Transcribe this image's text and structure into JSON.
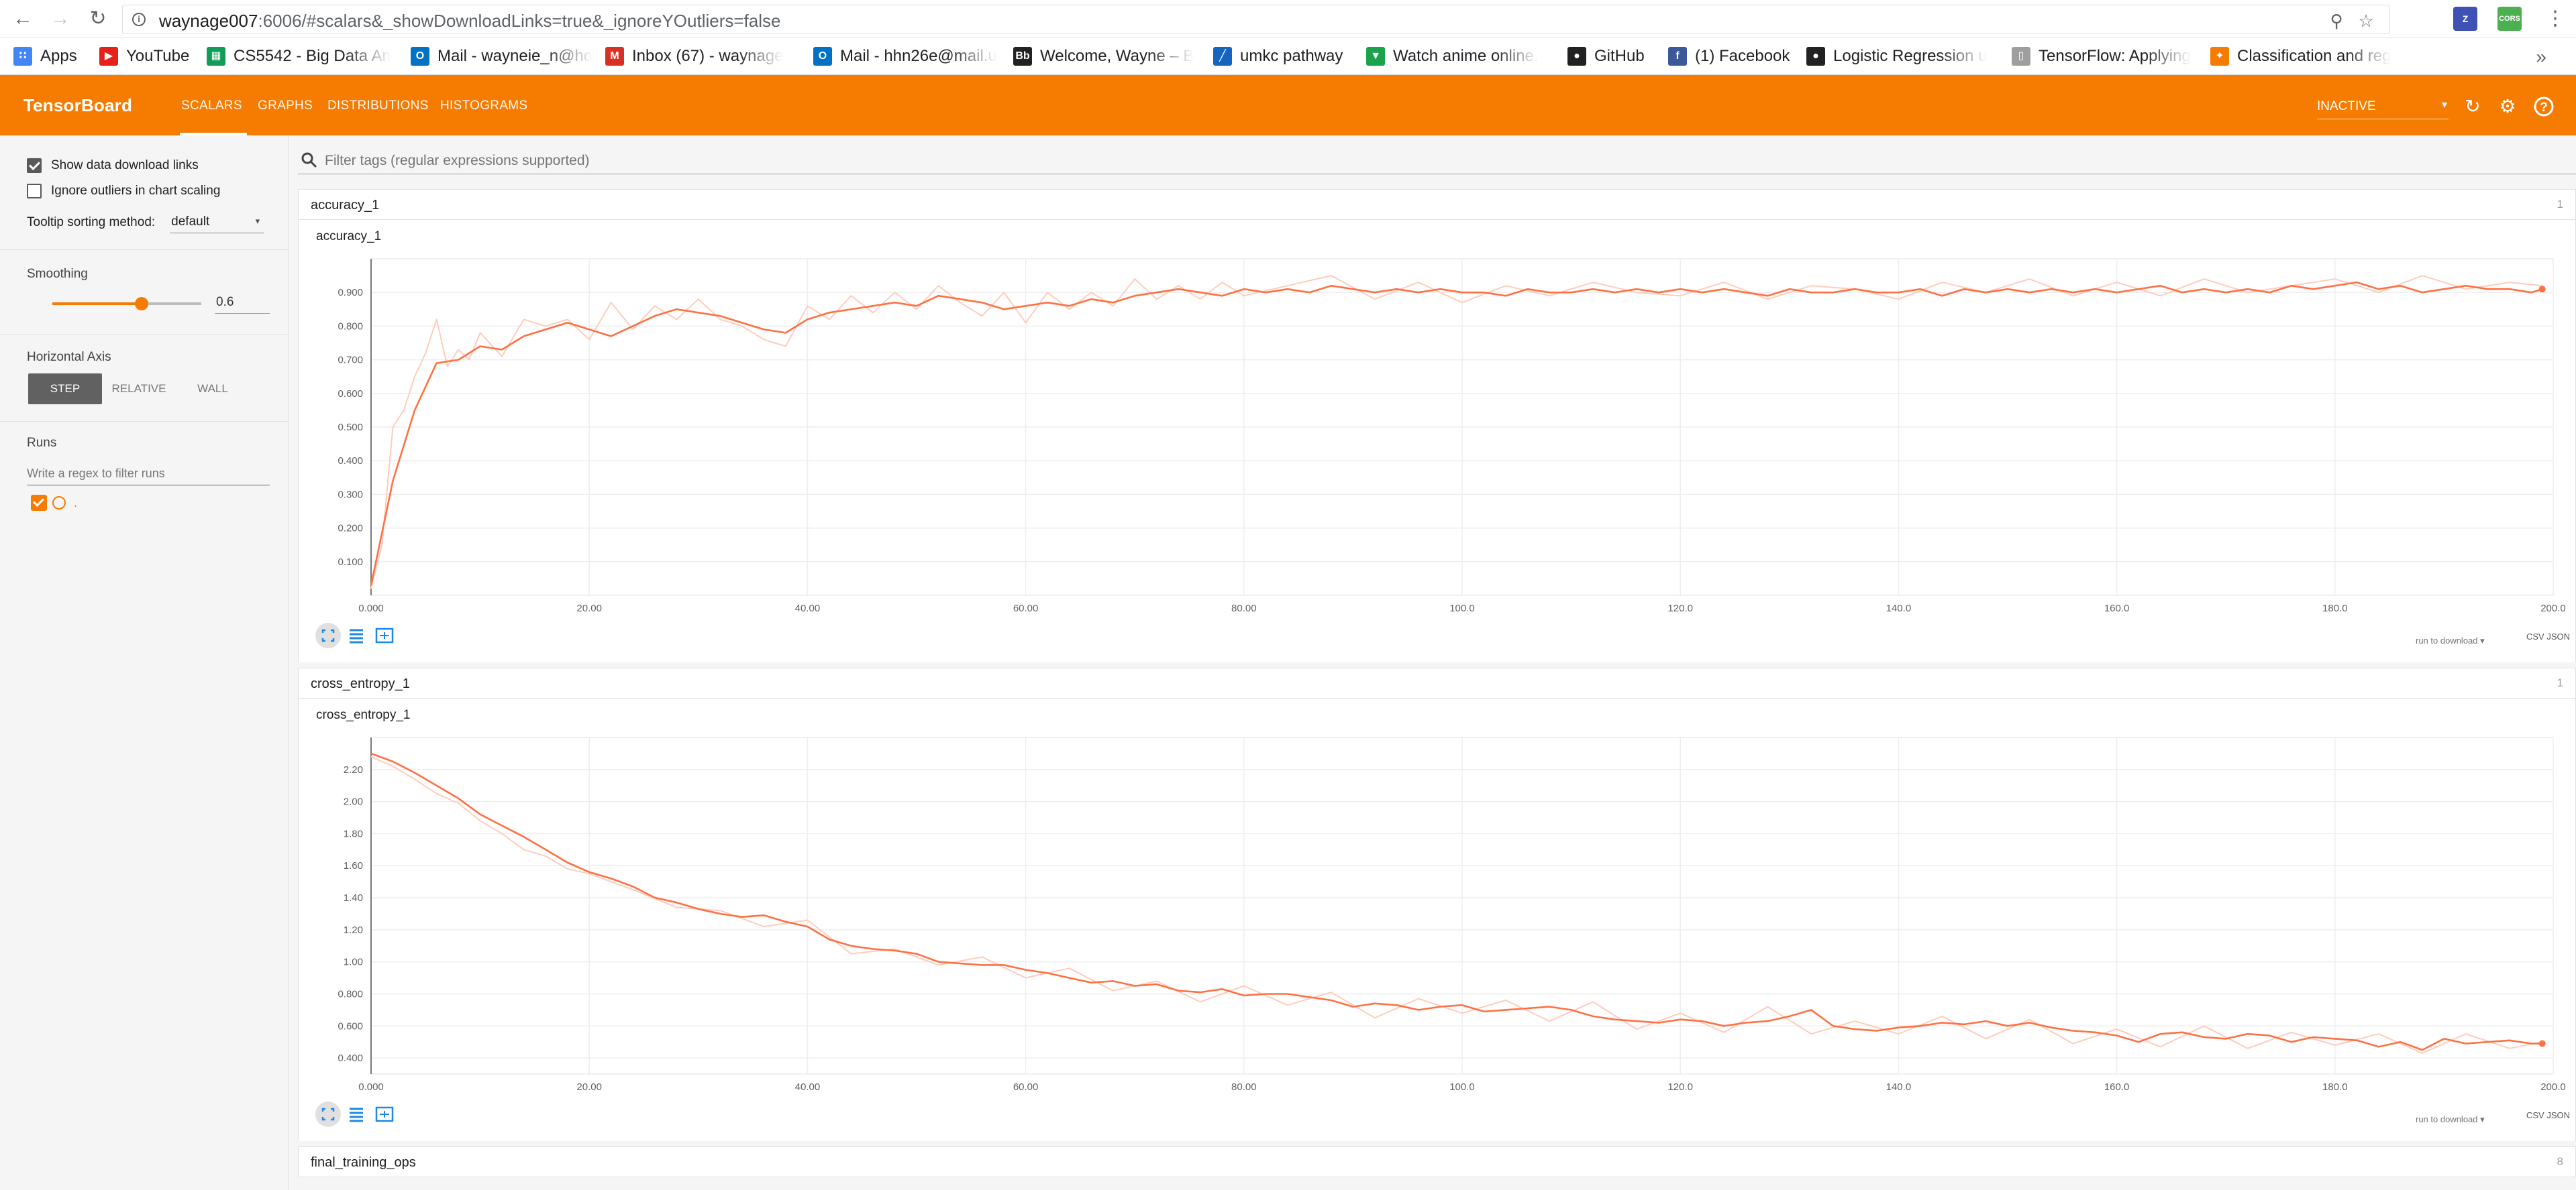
{
  "browser": {
    "url_host": "waynage007",
    "url_rest": ":6006/#scalars&_showDownloadLinks=true&_ignoreYOutliers=false",
    "bookmarks": [
      {
        "label": "Apps",
        "icon": "apps-grid-icon",
        "color": "#4285f4"
      },
      {
        "label": "YouTube",
        "icon": "youtube-icon",
        "color": "#e62117"
      },
      {
        "label": "CS5542 - Big Data An",
        "icon": "sheets-icon",
        "color": "#0f9d58"
      },
      {
        "label": "Mail - wayneie_n@ho",
        "icon": "outlook-icon",
        "color": "#0072c6"
      },
      {
        "label": "Inbox (67) - waynage",
        "icon": "gmail-icon",
        "color": "#d93025"
      },
      {
        "label": "Mail - hhn26e@mail.u",
        "icon": "outlook-icon",
        "color": "#0072c6"
      },
      {
        "label": "Welcome, Wayne – B",
        "icon": "blackboard-icon",
        "color": "#222222"
      },
      {
        "label": "umkc pathway",
        "icon": "umkc-icon",
        "color": "#1565c0"
      },
      {
        "label": "Watch anime online, ",
        "icon": "anime-icon",
        "color": "#1aa34a"
      },
      {
        "label": "GitHub",
        "icon": "github-icon",
        "color": "#222222"
      },
      {
        "label": "(1) Facebook",
        "icon": "facebook-icon",
        "color": "#3b5998"
      },
      {
        "label": "Logistic Regression u",
        "icon": "github-icon",
        "color": "#222222"
      },
      {
        "label": "TensorFlow: Applying",
        "icon": "document-icon",
        "color": "#9e9e9e"
      },
      {
        "label": "Classification and reg",
        "icon": "badge-icon",
        "color": "#f57c00"
      }
    ]
  },
  "toolbar": {
    "title": "TensorBoard",
    "tabs": [
      "SCALARS",
      "GRAPHS",
      "DISTRIBUTIONS",
      "HISTOGRAMS"
    ],
    "status": "INACTIVE",
    "accent": "#f57c00"
  },
  "sidebar": {
    "show_download_links": "Show data download links",
    "ignore_outliers": "Ignore outliers in chart scaling",
    "tooltip_label": "Tooltip sorting method:",
    "tooltip_value": "default",
    "smoothing_label": "Smoothing",
    "smoothing_value": "0.6",
    "smoothing_fraction": 0.6,
    "horizontal_axis_label": "Horizontal Axis",
    "axis_options": [
      "STEP",
      "RELATIVE",
      "WALL"
    ],
    "runs_label": "Runs",
    "runs_filter_placeholder": "Write a regex to filter runs",
    "run_name": "."
  },
  "main": {
    "filter_placeholder": "Filter tags (regular expressions supported)",
    "categories": [
      {
        "name": "accuracy_1",
        "count": "1"
      },
      {
        "name": "cross_entropy_1",
        "count": "1"
      },
      {
        "name": "final_training_ops",
        "count": "8"
      }
    ],
    "download_select": "run to download",
    "download_links": "CSV JSON"
  },
  "chart_data": [
    {
      "type": "line",
      "title": "accuracy_1",
      "xlabel": "",
      "ylabel": "",
      "xlim": [
        0,
        200
      ],
      "ylim": [
        0,
        1.0
      ],
      "x_ticks": [
        "0.000",
        "20.00",
        "40.00",
        "60.00",
        "80.00",
        "100.0",
        "120.0",
        "140.0",
        "160.0",
        "180.0",
        "200.0"
      ],
      "y_ticks": [
        "0.100",
        "0.200",
        "0.300",
        "0.400",
        "0.500",
        "0.600",
        "0.700",
        "0.800",
        "0.900"
      ],
      "grid": true,
      "series": [
        {
          "color": "#ff7043",
          "x": [
            0,
            2,
            4,
            6,
            8,
            10,
            12,
            14,
            16,
            18,
            20,
            22,
            24,
            26,
            28,
            30,
            32,
            34,
            36,
            38,
            40,
            42,
            44,
            46,
            48,
            50,
            52,
            54,
            56,
            58,
            60,
            62,
            64,
            66,
            68,
            70,
            72,
            74,
            76,
            78,
            80,
            82,
            84,
            86,
            88,
            90,
            92,
            94,
            96,
            98,
            100,
            102,
            104,
            106,
            108,
            110,
            112,
            114,
            116,
            118,
            120,
            122,
            124,
            126,
            128,
            130,
            132,
            134,
            136,
            138,
            140,
            142,
            144,
            146,
            148,
            150,
            152,
            154,
            156,
            158,
            160,
            162,
            164,
            166,
            168,
            170,
            172,
            174,
            176,
            178,
            180,
            182,
            184,
            186,
            188,
            190,
            192,
            194,
            196,
            198,
            199
          ],
          "y": [
            0.03,
            0.34,
            0.55,
            0.69,
            0.7,
            0.74,
            0.73,
            0.77,
            0.79,
            0.81,
            0.79,
            0.77,
            0.8,
            0.83,
            0.85,
            0.84,
            0.83,
            0.81,
            0.79,
            0.78,
            0.82,
            0.84,
            0.85,
            0.86,
            0.87,
            0.86,
            0.89,
            0.88,
            0.87,
            0.85,
            0.86,
            0.87,
            0.86,
            0.88,
            0.87,
            0.89,
            0.9,
            0.91,
            0.9,
            0.89,
            0.91,
            0.9,
            0.91,
            0.9,
            0.92,
            0.91,
            0.9,
            0.91,
            0.9,
            0.91,
            0.9,
            0.9,
            0.89,
            0.91,
            0.9,
            0.9,
            0.91,
            0.9,
            0.91,
            0.9,
            0.91,
            0.9,
            0.91,
            0.9,
            0.89,
            0.91,
            0.9,
            0.9,
            0.91,
            0.9,
            0.9,
            0.91,
            0.89,
            0.91,
            0.9,
            0.91,
            0.9,
            0.91,
            0.9,
            0.91,
            0.9,
            0.91,
            0.92,
            0.9,
            0.91,
            0.9,
            0.91,
            0.9,
            0.92,
            0.91,
            0.92,
            0.93,
            0.91,
            0.92,
            0.9,
            0.91,
            0.92,
            0.91,
            0.91,
            0.9,
            0.91
          ]
        },
        {
          "color": "#ffccbc",
          "x": [
            0,
            1,
            2,
            3,
            4,
            5,
            6,
            7,
            8,
            9,
            10,
            12,
            14,
            16,
            18,
            20,
            22,
            24,
            26,
            28,
            30,
            32,
            34,
            36,
            38,
            40,
            42,
            44,
            46,
            48,
            50,
            52,
            54,
            56,
            58,
            60,
            62,
            64,
            66,
            68,
            70,
            72,
            74,
            76,
            78,
            80,
            84,
            88,
            92,
            96,
            100,
            104,
            108,
            112,
            116,
            120,
            124,
            128,
            132,
            136,
            140,
            144,
            148,
            152,
            156,
            160,
            164,
            168,
            172,
            176,
            180,
            184,
            188,
            192,
            196,
            199
          ],
          "y": [
            0.02,
            0.15,
            0.5,
            0.55,
            0.65,
            0.72,
            0.82,
            0.68,
            0.73,
            0.7,
            0.78,
            0.71,
            0.82,
            0.8,
            0.82,
            0.76,
            0.87,
            0.79,
            0.86,
            0.82,
            0.88,
            0.82,
            0.8,
            0.76,
            0.74,
            0.86,
            0.82,
            0.89,
            0.84,
            0.9,
            0.85,
            0.92,
            0.87,
            0.83,
            0.9,
            0.81,
            0.9,
            0.85,
            0.9,
            0.86,
            0.94,
            0.88,
            0.92,
            0.88,
            0.93,
            0.89,
            0.92,
            0.95,
            0.88,
            0.93,
            0.87,
            0.92,
            0.89,
            0.93,
            0.9,
            0.89,
            0.93,
            0.88,
            0.92,
            0.91,
            0.88,
            0.93,
            0.9,
            0.94,
            0.89,
            0.93,
            0.89,
            0.94,
            0.9,
            0.92,
            0.94,
            0.9,
            0.95,
            0.91,
            0.93,
            0.92
          ]
        }
      ]
    },
    {
      "type": "line",
      "title": "cross_entropy_1",
      "xlabel": "",
      "ylabel": "",
      "xlim": [
        0,
        200
      ],
      "ylim": [
        0.3,
        2.4
      ],
      "x_ticks": [
        "0.000",
        "20.00",
        "40.00",
        "60.00",
        "80.00",
        "100.0",
        "120.0",
        "140.0",
        "160.0",
        "180.0",
        "200.0"
      ],
      "y_ticks": [
        "0.400",
        "0.600",
        "0.800",
        "1.00",
        "1.20",
        "1.40",
        "1.60",
        "1.80",
        "2.00",
        "2.20"
      ],
      "grid": true,
      "series": [
        {
          "color": "#ff7043",
          "x": [
            0,
            2,
            4,
            6,
            8,
            10,
            12,
            14,
            16,
            18,
            20,
            22,
            24,
            26,
            28,
            30,
            32,
            34,
            36,
            38,
            40,
            42,
            44,
            46,
            48,
            50,
            52,
            54,
            56,
            58,
            60,
            62,
            64,
            66,
            68,
            70,
            72,
            74,
            76,
            78,
            80,
            82,
            84,
            86,
            88,
            90,
            92,
            94,
            96,
            98,
            100,
            102,
            104,
            106,
            108,
            110,
            112,
            114,
            116,
            118,
            120,
            122,
            124,
            126,
            128,
            130,
            132,
            134,
            136,
            138,
            140,
            142,
            144,
            146,
            148,
            150,
            152,
            154,
            156,
            158,
            160,
            162,
            164,
            166,
            168,
            170,
            172,
            174,
            176,
            178,
            180,
            182,
            184,
            186,
            188,
            190,
            192,
            194,
            196,
            198,
            199
          ],
          "y": [
            2.3,
            2.25,
            2.18,
            2.1,
            2.02,
            1.92,
            1.85,
            1.78,
            1.7,
            1.62,
            1.56,
            1.52,
            1.47,
            1.4,
            1.37,
            1.33,
            1.3,
            1.28,
            1.29,
            1.25,
            1.22,
            1.14,
            1.1,
            1.08,
            1.07,
            1.05,
            1.0,
            0.99,
            0.98,
            0.98,
            0.95,
            0.93,
            0.9,
            0.87,
            0.88,
            0.85,
            0.86,
            0.82,
            0.81,
            0.83,
            0.79,
            0.8,
            0.8,
            0.78,
            0.76,
            0.72,
            0.74,
            0.73,
            0.7,
            0.72,
            0.73,
            0.69,
            0.7,
            0.71,
            0.72,
            0.7,
            0.66,
            0.64,
            0.63,
            0.62,
            0.64,
            0.63,
            0.6,
            0.62,
            0.63,
            0.66,
            0.7,
            0.6,
            0.58,
            0.57,
            0.59,
            0.6,
            0.62,
            0.61,
            0.63,
            0.6,
            0.62,
            0.59,
            0.57,
            0.56,
            0.54,
            0.5,
            0.55,
            0.56,
            0.53,
            0.52,
            0.55,
            0.54,
            0.5,
            0.53,
            0.52,
            0.51,
            0.47,
            0.5,
            0.45,
            0.52,
            0.49,
            0.5,
            0.51,
            0.49,
            0.49
          ]
        },
        {
          "color": "#ffccbc",
          "x": [
            0,
            2,
            4,
            6,
            8,
            10,
            12,
            14,
            16,
            18,
            20,
            24,
            28,
            32,
            36,
            40,
            44,
            48,
            52,
            56,
            60,
            64,
            68,
            72,
            76,
            80,
            84,
            88,
            92,
            96,
            100,
            104,
            108,
            112,
            116,
            120,
            124,
            128,
            132,
            136,
            140,
            144,
            148,
            152,
            156,
            160,
            164,
            168,
            172,
            176,
            180,
            184,
            188,
            192,
            196,
            199
          ],
          "y": [
            2.28,
            2.22,
            2.14,
            2.05,
            1.99,
            1.88,
            1.8,
            1.7,
            1.66,
            1.58,
            1.55,
            1.45,
            1.34,
            1.32,
            1.22,
            1.26,
            1.05,
            1.08,
            0.98,
            1.03,
            0.9,
            0.96,
            0.82,
            0.88,
            0.75,
            0.85,
            0.73,
            0.81,
            0.65,
            0.77,
            0.68,
            0.76,
            0.63,
            0.75,
            0.58,
            0.68,
            0.56,
            0.72,
            0.55,
            0.63,
            0.55,
            0.66,
            0.52,
            0.64,
            0.49,
            0.58,
            0.47,
            0.6,
            0.46,
            0.56,
            0.48,
            0.55,
            0.43,
            0.55,
            0.46,
            0.5
          ]
        }
      ]
    }
  ]
}
